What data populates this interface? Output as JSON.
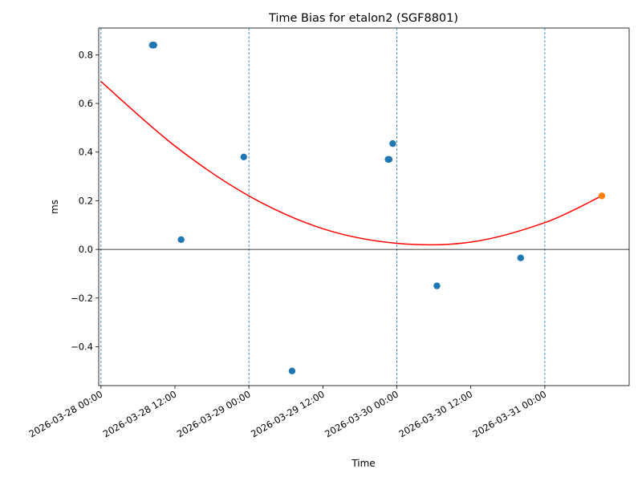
{
  "chart_data": {
    "type": "scatter",
    "title": "Time Bias for etalon2 (SGF8801)",
    "xlabel": "Time",
    "ylabel": "ms",
    "xlim": [
      "2026-03-27T23:38",
      "2026-03-31T13:41"
    ],
    "ylim": [
      -0.56,
      0.91
    ],
    "x_ticks": [
      "2026-03-28 00:00",
      "2026-03-28 12:00",
      "2026-03-29 00:00",
      "2026-03-29 12:00",
      "2026-03-30 00:00",
      "2026-03-30 12:00",
      "2026-03-31 00:00"
    ],
    "y_ticks": [
      -0.4,
      -0.2,
      0.0,
      0.2,
      0.4,
      0.6,
      0.8
    ],
    "y_tick_labels": [
      "−0.4",
      "−0.2",
      "0.0",
      "0.2",
      "0.4",
      "0.6",
      "0.8"
    ],
    "vertical_guides": [
      "2026-03-28T00:00",
      "2026-03-29T00:00",
      "2026-03-30T00:00",
      "2026-03-31T00:00"
    ],
    "zero_line": 0.0,
    "colors": {
      "observed": "#1f77b4",
      "predicted": "#ff7f0e",
      "fit": "#ff0000",
      "guide": "#1f77b4",
      "zero": "#000000"
    },
    "series": [
      {
        "role": "observed",
        "points": [
          {
            "x": "2026-03-28T08:20",
            "y": 0.84
          },
          {
            "x": "2026-03-28T08:35",
            "y": 0.84
          },
          {
            "x": "2026-03-28T13:00",
            "y": 0.04
          },
          {
            "x": "2026-03-28T23:10",
            "y": 0.38
          },
          {
            "x": "2026-03-29T07:00",
            "y": -0.5
          },
          {
            "x": "2026-03-29T22:35",
            "y": 0.37
          },
          {
            "x": "2026-03-29T22:45",
            "y": 0.37
          },
          {
            "x": "2026-03-29T23:20",
            "y": 0.435
          },
          {
            "x": "2026-03-30T06:30",
            "y": -0.15
          },
          {
            "x": "2026-03-30T20:05",
            "y": -0.035
          }
        ]
      },
      {
        "role": "predicted",
        "points": [
          {
            "x": "2026-03-31T09:15",
            "y": 0.22
          }
        ]
      }
    ],
    "fit_curve": {
      "role": "fit",
      "points": [
        {
          "x": "2026-03-28T00:00",
          "y": 0.69
        },
        {
          "x": "2026-03-28T12:00",
          "y": 0.425
        },
        {
          "x": "2026-03-29T00:00",
          "y": 0.22
        },
        {
          "x": "2026-03-29T12:00",
          "y": 0.085
        },
        {
          "x": "2026-03-30T00:00",
          "y": 0.025
        },
        {
          "x": "2026-03-30T12:00",
          "y": 0.03
        },
        {
          "x": "2026-03-31T00:00",
          "y": 0.11
        },
        {
          "x": "2026-03-31T09:15",
          "y": 0.22
        }
      ]
    }
  }
}
